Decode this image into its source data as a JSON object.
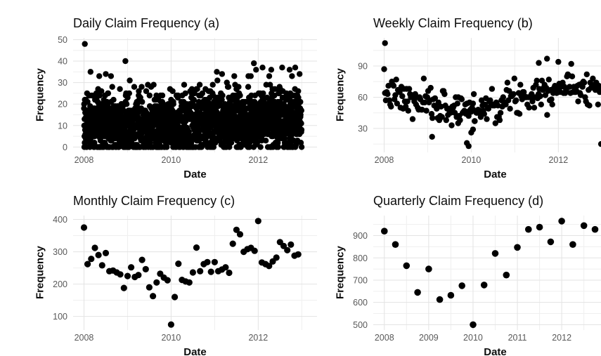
{
  "figure": {
    "background": "#ffffff",
    "point_color": "#000000",
    "grid_major_color": "#e3e3e3",
    "grid_minor_color": "#efefef",
    "tick_label_color": "#595959",
    "title_color": "#0d0d0d"
  },
  "chart_data": [
    {
      "id": "daily",
      "type": "scatter",
      "title": "Daily Claim Frequency (a)",
      "xlabel": "Date",
      "ylabel": "Frequency",
      "x_domain": [
        2007.75,
        2013.35
      ],
      "y_domain": [
        -2.5,
        50.8
      ],
      "x_ticks": [
        2008,
        2010,
        2012
      ],
      "x_minor": [
        2009,
        2011,
        2013
      ],
      "y_ticks": [
        0,
        10,
        20,
        30,
        40,
        50
      ],
      "y_minor": [
        5,
        15,
        25,
        35,
        45
      ],
      "point_radius": 4.2,
      "summary": "~1820 daily claim counts 2008-2012, dense band 0-25, sparser 25-35, occasional highs to 40, single outlier 48 at start of 2008",
      "generated_cloud": {
        "seed": 20080101,
        "n": 1820,
        "x_start": 2008.0,
        "x_step": 0.0027473,
        "trend": [
          [
            2008,
            11.5
          ],
          [
            2009,
            10
          ],
          [
            2010,
            10
          ],
          [
            2011,
            11.5
          ],
          [
            2012,
            12.5
          ],
          [
            2013,
            13
          ]
        ],
        "sd": 7.2,
        "clip": [
          0,
          33
        ],
        "round": true
      },
      "outlier_points": [
        [
          2008.02,
          48
        ],
        [
          2008.95,
          40
        ],
        [
          2008.15,
          35
        ],
        [
          2008.35,
          33
        ],
        [
          2008.5,
          34
        ],
        [
          2008.62,
          33
        ],
        [
          2009.05,
          31
        ],
        [
          2009.6,
          29
        ],
        [
          2010.3,
          29
        ],
        [
          2010.6,
          27
        ],
        [
          2011.05,
          35
        ],
        [
          2011.17,
          34
        ],
        [
          2011.45,
          33
        ],
        [
          2011.9,
          39
        ],
        [
          2011.95,
          36
        ],
        [
          2012.1,
          37
        ],
        [
          2012.3,
          36
        ],
        [
          2012.55,
          37
        ],
        [
          2012.72,
          36
        ],
        [
          2012.85,
          37
        ],
        [
          2012.95,
          34
        ]
      ]
    },
    {
      "id": "weekly",
      "type": "scatter",
      "title": "Weekly Claim Frequency (b)",
      "xlabel": "Date",
      "ylabel": "Frequency",
      "x_domain": [
        2007.75,
        2013.35
      ],
      "y_domain": [
        7,
        117
      ],
      "x_ticks": [
        2008,
        2010,
        2012
      ],
      "x_minor": [
        2009,
        2011,
        2013
      ],
      "y_ticks": [
        30,
        60,
        90
      ],
      "y_minor": [
        15,
        45,
        75,
        105
      ],
      "point_radius": 4.2,
      "summary": "~260 weekly claim counts: ~65 early 2008 declining to ~48 around 2009-2010, rising to ~70 by 2012; outlier 112 first week 2008, lows 13-16 near 2010, low 15 final week 2012, peak 97 late 2011",
      "generated_cloud": {
        "seed": 7,
        "n": 252,
        "x_start": 2008.0,
        "x_step": 0.0198,
        "trend": [
          [
            2008,
            65
          ],
          [
            2008.7,
            55
          ],
          [
            2009.5,
            50
          ],
          [
            2010.1,
            49
          ],
          [
            2010.7,
            55
          ],
          [
            2011.2,
            62
          ],
          [
            2011.7,
            68
          ],
          [
            2012.2,
            71
          ],
          [
            2013,
            70
          ]
        ],
        "sd": 8,
        "clip": [
          33,
          92
        ],
        "round": true
      },
      "outlier_points": [
        [
          2008.02,
          112
        ],
        [
          2009.1,
          22
        ],
        [
          2009.55,
          33
        ],
        [
          2009.7,
          35
        ],
        [
          2009.9,
          16
        ],
        [
          2009.94,
          13
        ],
        [
          2010.0,
          26
        ],
        [
          2010.04,
          29
        ],
        [
          2010.08,
          37
        ],
        [
          2011.55,
          93
        ],
        [
          2011.74,
          97
        ],
        [
          2012.0,
          94
        ],
        [
          2012.98,
          15
        ]
      ]
    },
    {
      "id": "monthly",
      "type": "scatter",
      "title": "Monthly Claim Frequency (c)",
      "xlabel": "Date",
      "ylabel": "Frequency",
      "x_domain": [
        2007.75,
        2013.35
      ],
      "y_domain": [
        58,
        412
      ],
      "x_ticks": [
        2008,
        2010,
        2012
      ],
      "x_minor": [
        2009,
        2011,
        2013
      ],
      "y_ticks": [
        100,
        200,
        300,
        400
      ],
      "y_minor": [
        150,
        250,
        350
      ],
      "point_radius": 4.6,
      "points": [
        [
          2008.0,
          375
        ],
        [
          2008.083,
          262
        ],
        [
          2008.167,
          278
        ],
        [
          2008.25,
          312
        ],
        [
          2008.333,
          290
        ],
        [
          2008.417,
          258
        ],
        [
          2008.5,
          296
        ],
        [
          2008.583,
          240
        ],
        [
          2008.667,
          242
        ],
        [
          2008.75,
          236
        ],
        [
          2008.833,
          230
        ],
        [
          2008.917,
          188
        ],
        [
          2009.0,
          225
        ],
        [
          2009.083,
          252
        ],
        [
          2009.167,
          222
        ],
        [
          2009.25,
          228
        ],
        [
          2009.333,
          275
        ],
        [
          2009.417,
          246
        ],
        [
          2009.5,
          190
        ],
        [
          2009.583,
          163
        ],
        [
          2009.667,
          205
        ],
        [
          2009.75,
          232
        ],
        [
          2009.833,
          220
        ],
        [
          2009.917,
          212
        ],
        [
          2010.0,
          75
        ],
        [
          2010.083,
          160
        ],
        [
          2010.167,
          263
        ],
        [
          2010.25,
          213
        ],
        [
          2010.333,
          208
        ],
        [
          2010.417,
          205
        ],
        [
          2010.5,
          236
        ],
        [
          2010.583,
          313
        ],
        [
          2010.667,
          240
        ],
        [
          2010.75,
          262
        ],
        [
          2010.833,
          268
        ],
        [
          2010.917,
          238
        ],
        [
          2011.0,
          268
        ],
        [
          2011.083,
          240
        ],
        [
          2011.167,
          245
        ],
        [
          2011.25,
          252
        ],
        [
          2011.333,
          235
        ],
        [
          2011.417,
          325
        ],
        [
          2011.5,
          368
        ],
        [
          2011.583,
          354
        ],
        [
          2011.667,
          300
        ],
        [
          2011.75,
          308
        ],
        [
          2011.833,
          312
        ],
        [
          2011.917,
          303
        ],
        [
          2012.0,
          395
        ],
        [
          2012.083,
          267
        ],
        [
          2012.167,
          262
        ],
        [
          2012.25,
          256
        ],
        [
          2012.333,
          270
        ],
        [
          2012.417,
          282
        ],
        [
          2012.5,
          330
        ],
        [
          2012.583,
          318
        ],
        [
          2012.667,
          305
        ],
        [
          2012.75,
          322
        ],
        [
          2012.833,
          288
        ],
        [
          2012.917,
          292
        ]
      ]
    },
    {
      "id": "quarterly",
      "type": "scatter",
      "title": "Quarterly Claim Frequency (d)",
      "xlabel": "Date",
      "ylabel": "Frequency",
      "x_domain": [
        2007.75,
        2013.25
      ],
      "y_domain": [
        476,
        990
      ],
      "x_ticks": [
        2008,
        2009,
        2010,
        2011,
        2012
      ],
      "x_minor": [
        2008.5,
        2009.5,
        2010.5,
        2011.5,
        2012.5,
        2013
      ],
      "y_ticks": [
        500,
        600,
        700,
        800,
        900
      ],
      "y_minor": [
        550,
        650,
        750,
        850,
        950
      ],
      "point_radius": 4.8,
      "points": [
        [
          2008.0,
          920
        ],
        [
          2008.25,
          860
        ],
        [
          2008.5,
          765
        ],
        [
          2008.75,
          645
        ],
        [
          2009.0,
          750
        ],
        [
          2009.25,
          613
        ],
        [
          2009.5,
          632
        ],
        [
          2009.75,
          675
        ],
        [
          2010.0,
          500
        ],
        [
          2010.25,
          678
        ],
        [
          2010.5,
          820
        ],
        [
          2010.75,
          723
        ],
        [
          2011.0,
          847
        ],
        [
          2011.25,
          928
        ],
        [
          2011.5,
          938
        ],
        [
          2011.75,
          872
        ],
        [
          2012.0,
          965
        ],
        [
          2012.25,
          860
        ],
        [
          2012.5,
          945
        ],
        [
          2012.75,
          928
        ]
      ]
    }
  ]
}
